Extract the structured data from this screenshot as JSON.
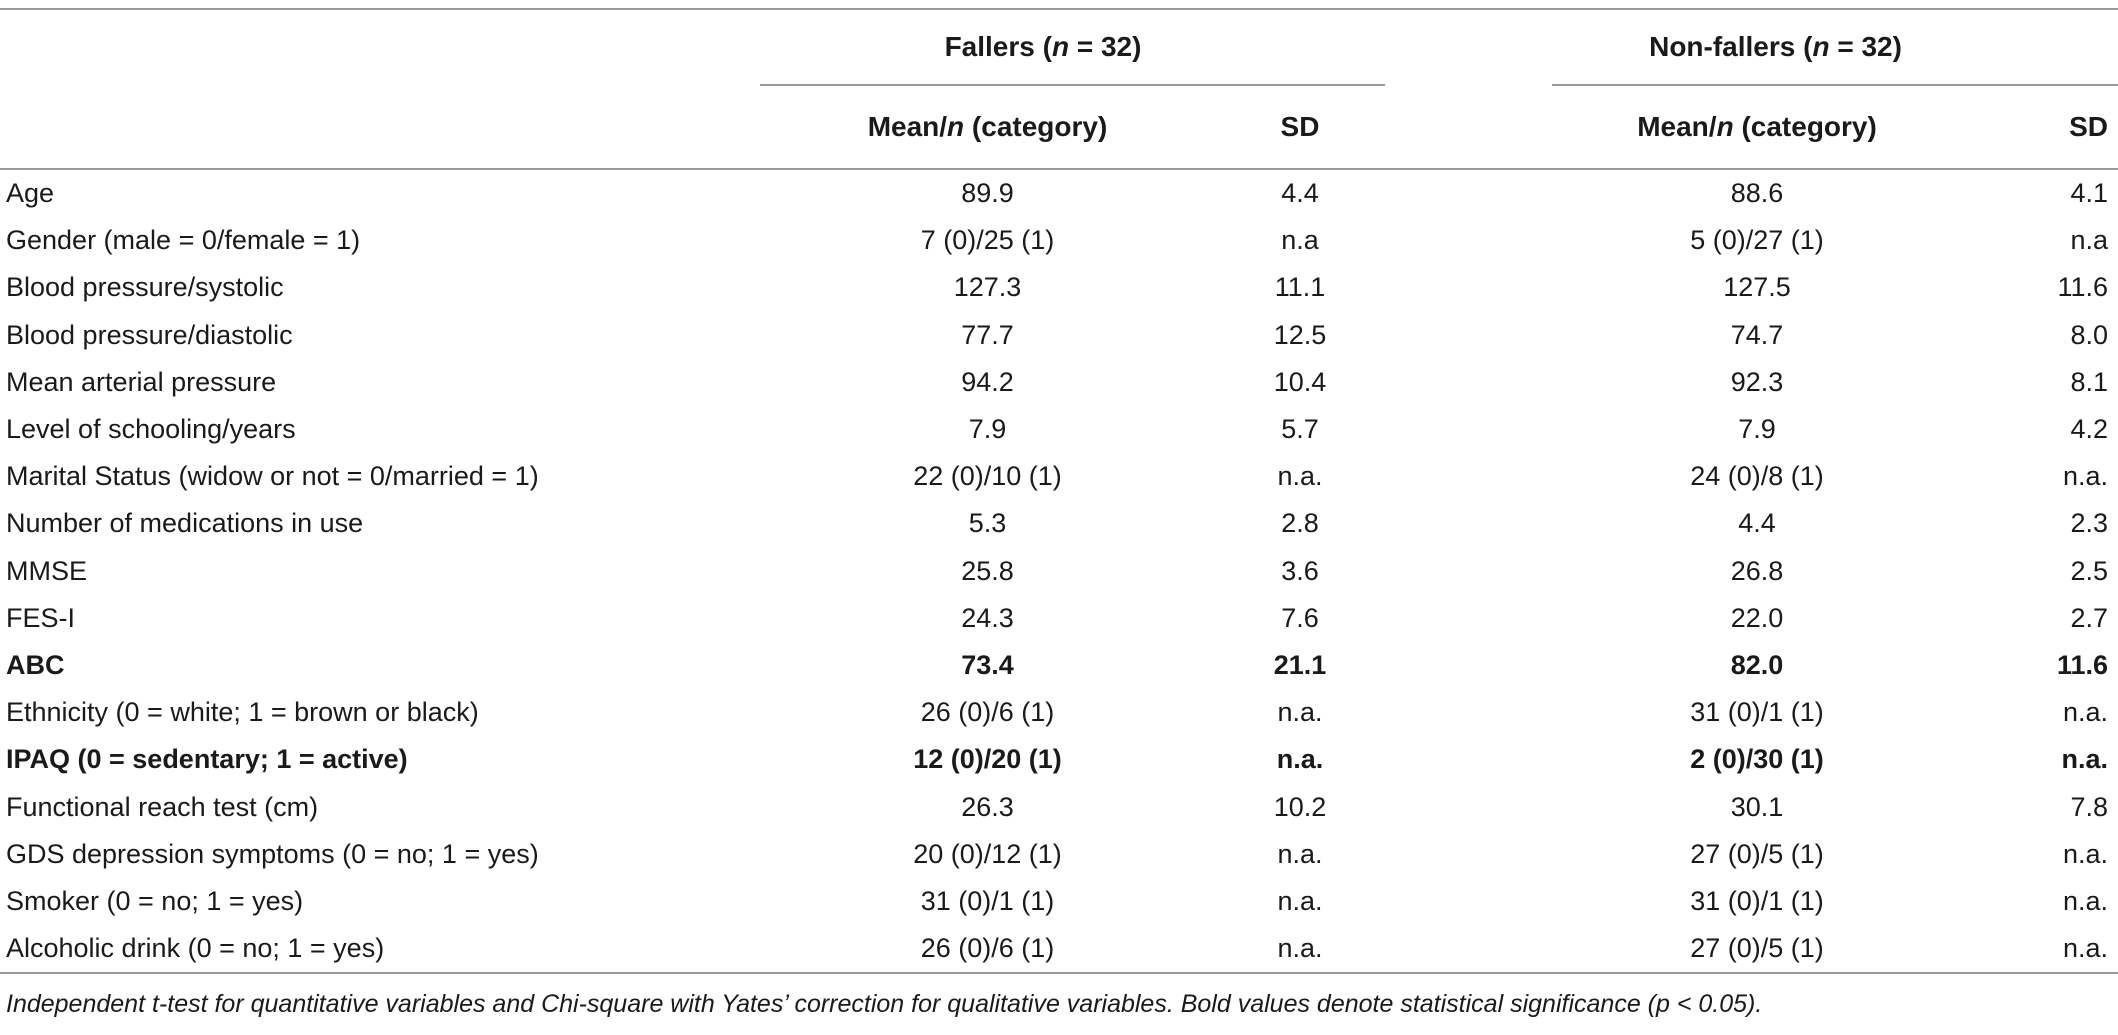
{
  "header": {
    "fallers_label": "Fallers (",
    "fallers_n": "n",
    "fallers_count": " = 32)",
    "nonfallers_label": "Non-fallers (",
    "nonfallers_n": "n",
    "nonfallers_count": " = 32)",
    "mean_prefix": "Mean/",
    "mean_n": "n",
    "mean_suffix": " (category)",
    "sd": "SD"
  },
  "rows": [
    {
      "label": "Age",
      "f_mean": "89.9",
      "f_sd": "4.4",
      "n_mean": "88.6",
      "n_sd": "4.1",
      "bold": false
    },
    {
      "label": "Gender (male = 0/female = 1)",
      "f_mean": "7 (0)/25 (1)",
      "f_sd": "n.a",
      "n_mean": "5 (0)/27 (1)",
      "n_sd": "n.a",
      "bold": false
    },
    {
      "label": "Blood pressure/systolic",
      "f_mean": "127.3",
      "f_sd": "11.1",
      "n_mean": "127.5",
      "n_sd": "11.6",
      "bold": false
    },
    {
      "label": "Blood pressure/diastolic",
      "f_mean": "77.7",
      "f_sd": "12.5",
      "n_mean": "74.7",
      "n_sd": "8.0",
      "bold": false
    },
    {
      "label": "Mean arterial pressure",
      "f_mean": "94.2",
      "f_sd": "10.4",
      "n_mean": "92.3",
      "n_sd": "8.1",
      "bold": false
    },
    {
      "label": "Level of schooling/years",
      "f_mean": "7.9",
      "f_sd": "5.7",
      "n_mean": "7.9",
      "n_sd": "4.2",
      "bold": false
    },
    {
      "label": "Marital Status (widow or not = 0/married = 1)",
      "f_mean": "22 (0)/10 (1)",
      "f_sd": "n.a.",
      "n_mean": "24 (0)/8 (1)",
      "n_sd": "n.a.",
      "bold": false
    },
    {
      "label": "Number of medications in use",
      "f_mean": "5.3",
      "f_sd": "2.8",
      "n_mean": "4.4",
      "n_sd": "2.3",
      "bold": false
    },
    {
      "label": "MMSE",
      "f_mean": "25.8",
      "f_sd": "3.6",
      "n_mean": "26.8",
      "n_sd": "2.5",
      "bold": false
    },
    {
      "label": "FES-I",
      "f_mean": "24.3",
      "f_sd": "7.6",
      "n_mean": "22.0",
      "n_sd": "2.7",
      "bold": false
    },
    {
      "label": "ABC",
      "f_mean": "73.4",
      "f_sd": "21.1",
      "n_mean": "82.0",
      "n_sd": "11.6",
      "bold": true
    },
    {
      "label": "Ethnicity (0 = white; 1 = brown or black)",
      "f_mean": "26 (0)/6 (1)",
      "f_sd": "n.a.",
      "n_mean": "31 (0)/1 (1)",
      "n_sd": "n.a.",
      "bold": false
    },
    {
      "label": "IPAQ (0 = sedentary; 1 = active)",
      "f_mean": "12 (0)/20 (1)",
      "f_sd": "n.a.",
      "n_mean": "2 (0)/30 (1)",
      "n_sd": "n.a.",
      "bold": true
    },
    {
      "label": "Functional reach test (cm)",
      "f_mean": "26.3",
      "f_sd": "10.2",
      "n_mean": "30.1",
      "n_sd": "7.8",
      "bold": false
    },
    {
      "label": "GDS depression symptoms (0 = no; 1 = yes)",
      "f_mean": "20 (0)/12 (1)",
      "f_sd": "n.a.",
      "n_mean": "27 (0)/5 (1)",
      "n_sd": "n.a.",
      "bold": false
    },
    {
      "label": "Smoker (0 = no; 1 = yes)",
      "f_mean": "31 (0)/1 (1)",
      "f_sd": "n.a.",
      "n_mean": "31 (0)/1 (1)",
      "n_sd": "n.a.",
      "bold": false
    },
    {
      "label": "Alcoholic drink (0 = no; 1 = yes)",
      "f_mean": "26 (0)/6 (1)",
      "f_sd": "n.a.",
      "n_mean": "27 (0)/5 (1)",
      "n_sd": "n.a.",
      "bold": false
    }
  ],
  "footnote": "Independent t-test for quantitative variables and Chi-square with Yates’ correction for qualitative variables. Bold values denote statistical significance (p < 0.05)."
}
